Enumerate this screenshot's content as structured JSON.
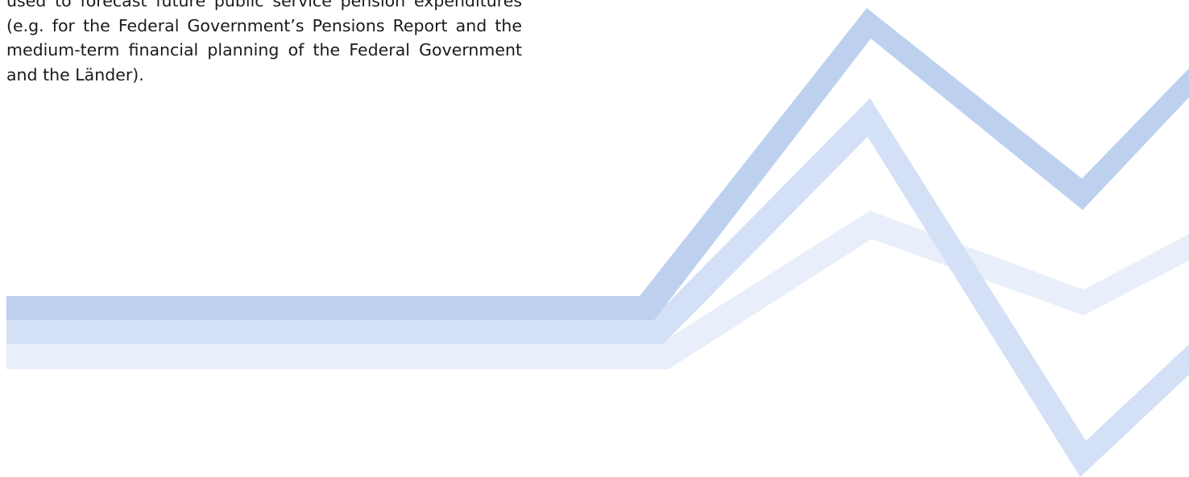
{
  "document": {
    "paragraph_lines": [
      "used to forecast future public service pension expenditures",
      "(e.g. for the Federal Government’s Pensions Report and the",
      "medium-term financial planning of the Federal Government",
      "and the Länder)."
    ]
  },
  "decoration": {
    "description_icon": "zigzag-ribbons-graphic",
    "colors": {
      "dark_ribbon": "#bdd1ef",
      "mid_ribbon": "#d3e0f5",
      "light_ribbon": "#e8eefa"
    }
  }
}
